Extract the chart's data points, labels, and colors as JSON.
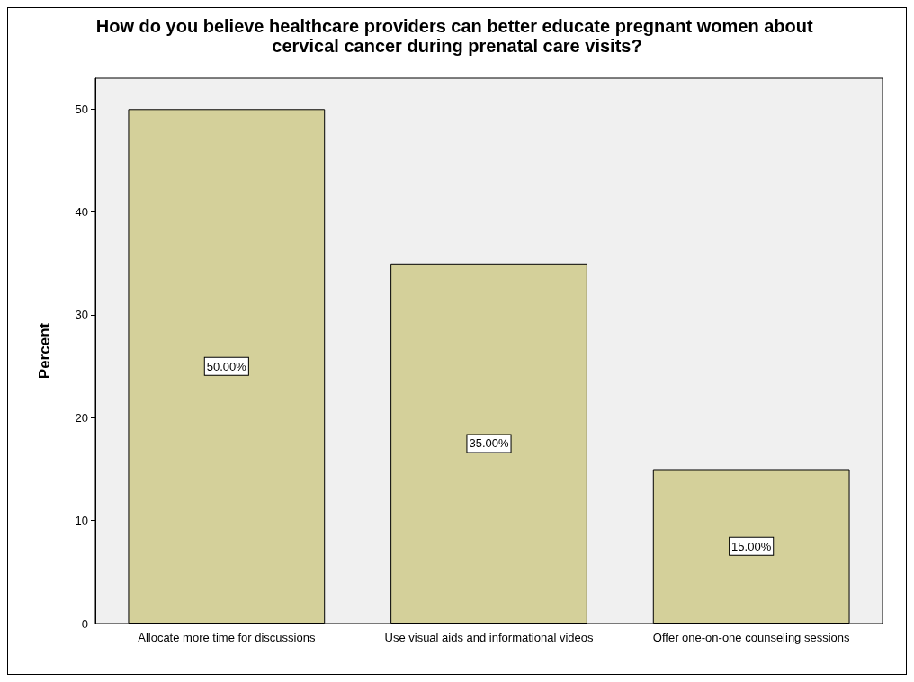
{
  "chart_data": {
    "type": "bar",
    "title": "How do you believe healthcare providers can better educate pregnant women about cervical cancer during prenatal care visits?",
    "ylabel": "Percent",
    "categories": [
      "Allocate more time for discussions",
      "Use visual aids and informational videos",
      "Offer one-on-one counseling sessions"
    ],
    "values": [
      50,
      35,
      15
    ],
    "color": "#d4d09a",
    "value_labels": [
      "50.00%",
      "35.00%",
      "15.00%"
    ],
    "ylim": [
      0,
      53
    ],
    "yticks": [
      0,
      10,
      20,
      30,
      40,
      50
    ],
    "grid": false,
    "legend": false
  }
}
